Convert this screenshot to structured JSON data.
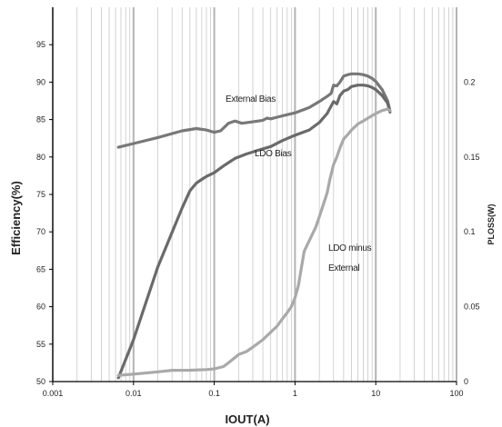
{
  "chart_data": {
    "type": "line",
    "title": "",
    "xlabel": "IOUT(A)",
    "ylabel": "Efficiency(%)",
    "y2label": "PLOSS(W)",
    "xscale": "log",
    "xlim": [
      0.001,
      100
    ],
    "ylim": [
      50,
      100
    ],
    "y2lim": [
      0,
      0.25
    ],
    "grid": "vertical log gridlines",
    "legend": "none",
    "x_ticks": [
      "0.001",
      "0.01",
      "0.1",
      "1",
      "10",
      "100"
    ],
    "y_ticks": [
      "50",
      "55",
      "60",
      "65",
      "70",
      "75",
      "80",
      "85",
      "90",
      "95"
    ],
    "y2_ticks": [
      "0",
      "0.05",
      "0.1",
      "0.15",
      "0.2"
    ],
    "colors": {
      "external_bias": "#787878",
      "ldo_bias": "#6a6a6a",
      "ldo_minus_external": "#a9a9a9",
      "grid": "#c8c8c8",
      "axis": "#000000"
    },
    "series": [
      {
        "label": "External Bias",
        "axis": "left",
        "x": [
          0.0065,
          0.01,
          0.02,
          0.04,
          0.06,
          0.08,
          0.1,
          0.12,
          0.15,
          0.18,
          0.22,
          0.3,
          0.4,
          0.45,
          0.5,
          0.7,
          1.0,
          1.5,
          2.0,
          2.5,
          2.8,
          3.0,
          3.3,
          3.6,
          4.0,
          4.5,
          5.0,
          6.0,
          7.0,
          8.0,
          9.0,
          10.0,
          12.0,
          14.0,
          15.0
        ],
        "y": [
          81.3,
          81.8,
          82.6,
          83.5,
          83.8,
          83.6,
          83.3,
          83.5,
          84.5,
          84.8,
          84.5,
          84.7,
          84.9,
          85.2,
          85.1,
          85.5,
          85.9,
          86.6,
          87.4,
          88.1,
          88.5,
          89.6,
          89.5,
          90.0,
          90.8,
          91.0,
          91.1,
          91.1,
          91.0,
          90.8,
          90.5,
          90.1,
          89.0,
          87.5,
          86.2
        ]
      },
      {
        "label": "LDO Bias",
        "axis": "left",
        "x": [
          0.0065,
          0.01,
          0.02,
          0.04,
          0.05,
          0.06,
          0.07,
          0.08,
          0.1,
          0.13,
          0.18,
          0.25,
          0.35,
          0.5,
          0.7,
          1.0,
          1.5,
          2.0,
          2.5,
          2.8,
          3.0,
          3.3,
          3.6,
          4.0,
          4.5,
          5.0,
          6.0,
          7.0,
          8.0,
          9.0,
          10.0,
          12.0,
          14.0,
          15.0
        ],
        "y": [
          50.5,
          55.6,
          65.3,
          73.2,
          75.5,
          76.5,
          77.0,
          77.4,
          77.9,
          78.8,
          79.8,
          80.4,
          80.9,
          81.4,
          82.2,
          82.9,
          83.6,
          84.6,
          85.8,
          86.8,
          87.4,
          87.1,
          88.2,
          88.8,
          89.0,
          89.4,
          89.6,
          89.6,
          89.5,
          89.3,
          89.0,
          88.2,
          87.2,
          86.0
        ]
      },
      {
        "label": "LDO minus External",
        "axis": "right",
        "x": [
          0.0065,
          0.01,
          0.02,
          0.03,
          0.05,
          0.08,
          0.1,
          0.13,
          0.15,
          0.18,
          0.2,
          0.25,
          0.3,
          0.4,
          0.5,
          0.6,
          0.7,
          0.8,
          0.9,
          1.0,
          1.1,
          1.2,
          1.3,
          1.5,
          1.8,
          2.0,
          2.3,
          2.5,
          2.7,
          3.0,
          3.3,
          3.6,
          4.0,
          4.5,
          5.0,
          6.0,
          7.0,
          8.0,
          10.0,
          12.0,
          14.0,
          15.0
        ],
        "y": [
          0.0042,
          0.005,
          0.0065,
          0.0075,
          0.0076,
          0.008,
          0.0085,
          0.01,
          0.0125,
          0.016,
          0.018,
          0.02,
          0.023,
          0.028,
          0.033,
          0.037,
          0.042,
          0.046,
          0.05,
          0.056,
          0.064,
          0.076,
          0.087,
          0.094,
          0.103,
          0.11,
          0.12,
          0.126,
          0.135,
          0.145,
          0.15,
          0.156,
          0.162,
          0.165,
          0.168,
          0.172,
          0.174,
          0.176,
          0.179,
          0.181,
          0.182,
          0.181
        ]
      }
    ],
    "annotations": [
      "External Bias",
      "LDO Bias",
      "LDO minus",
      "External"
    ]
  }
}
